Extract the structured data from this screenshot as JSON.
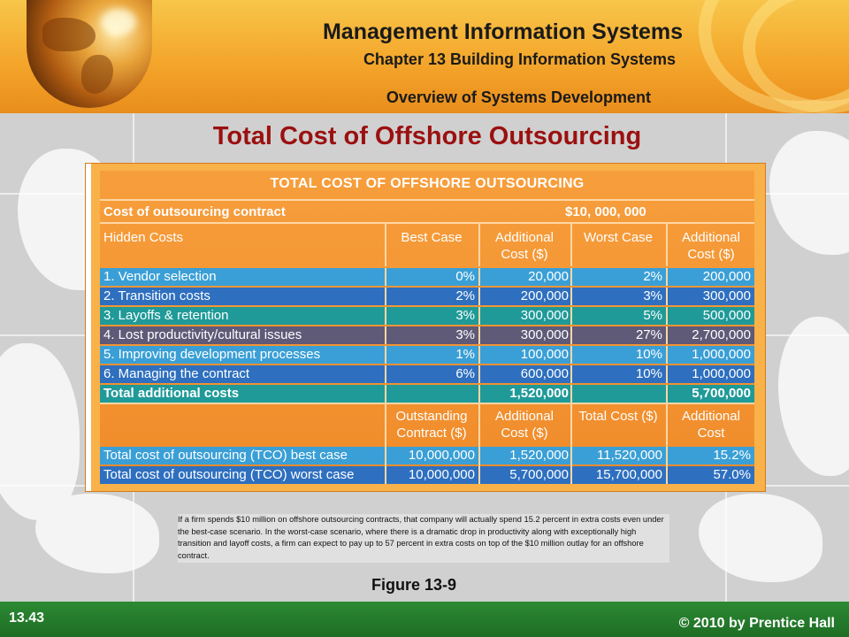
{
  "header": {
    "title": "Management Information Systems",
    "chapter": "Chapter 13 Building Information Systems",
    "section": "Overview of Systems Development"
  },
  "slide_title": "Total Cost of Offshore Outsourcing",
  "table": {
    "title": "TOTAL COST OF OFFSHORE OUTSOURCING",
    "contract_label": "Cost of outsourcing contract",
    "contract_value": "$10, 000, 000",
    "headers1": [
      "Hidden Costs",
      "Best Case",
      "Additional Cost ($)",
      "Worst Case",
      "Additional Cost ($)"
    ],
    "rows": [
      {
        "label": "1. Vendor selection",
        "best": "0%",
        "add1": "20,000",
        "worst": "2%",
        "add2": "200,000",
        "color": "#3a9fd6"
      },
      {
        "label": "2. Transition costs",
        "best": "2%",
        "add1": "200,000",
        "worst": "3%",
        "add2": "300,000",
        "color": "#2e6fbf"
      },
      {
        "label": "3. Layoffs & retention",
        "best": "3%",
        "add1": "300,000",
        "worst": "5%",
        "add2": "500,000",
        "color": "#1f9a98"
      },
      {
        "label": "4. Lost productivity/cultural issues",
        "best": "3%",
        "add1": "300,000",
        "worst": "27%",
        "add2": "2,700,000",
        "color": "#5e5a78"
      },
      {
        "label": "5. Improving development processes",
        "best": "1%",
        "add1": "100,000",
        "worst": "10%",
        "add2": "1,000,000",
        "color": "#3a9fd6"
      },
      {
        "label": "6. Managing the contract",
        "best": "6%",
        "add1": "600,000",
        "worst": "10%",
        "add2": "1,000,000",
        "color": "#2e6fbf"
      }
    ],
    "total_additional": {
      "label": "Total additional costs",
      "add1": "1,520,000",
      "add2": "5,700,000",
      "color": "#1f9a98"
    },
    "headers2": [
      "Outstanding Contract ($)",
      "Additional Cost ($)",
      "Total Cost ($)",
      "Additional Cost"
    ],
    "tco": [
      {
        "label": "Total cost of outsourcing (TCO) best case",
        "outstanding": "10,000,000",
        "add": "1,520,000",
        "total": "11,520,000",
        "pct": "15.2%",
        "color": "#3a9fd6"
      },
      {
        "label": "Total cost of outsourcing (TCO) worst case",
        "outstanding": "10,000,000",
        "add": "5,700,000",
        "total": "15,700,000",
        "pct": "57.0%",
        "color": "#2e6fbf"
      }
    ]
  },
  "caption": "If a firm spends $10 million on offshore outsourcing contracts, that company will actually spend 15.2 percent in extra costs even under the best-case scenario. In the worst-case scenario, where there is a dramatic drop in productivity along with exceptionally high transition and layoff costs, a firm can expect to pay up to 57 percent in extra costs on top of the $10 million outlay for an offshore contract.",
  "figure_label": "Figure 13-9",
  "footer": {
    "page": "13.43",
    "copyright": "© 2010 by Prentice Hall"
  }
}
